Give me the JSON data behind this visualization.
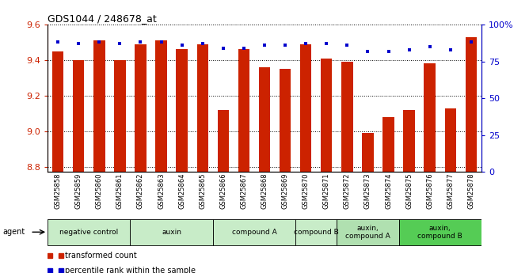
{
  "title": "GDS1044 / 248678_at",
  "samples": [
    "GSM25858",
    "GSM25859",
    "GSM25860",
    "GSM25861",
    "GSM25862",
    "GSM25863",
    "GSM25864",
    "GSM25865",
    "GSM25866",
    "GSM25867",
    "GSM25868",
    "GSM25869",
    "GSM25870",
    "GSM25871",
    "GSM25872",
    "GSM25873",
    "GSM25874",
    "GSM25875",
    "GSM25876",
    "GSM25877",
    "GSM25878"
  ],
  "bar_values": [
    9.45,
    9.4,
    9.51,
    9.4,
    9.49,
    9.51,
    9.46,
    9.49,
    9.12,
    9.46,
    9.36,
    9.35,
    9.49,
    9.41,
    9.39,
    8.99,
    9.08,
    9.12,
    9.38,
    9.13,
    9.53
  ],
  "dot_values": [
    88,
    87,
    88,
    87,
    88,
    88,
    86,
    87,
    84,
    84,
    86,
    86,
    87,
    87,
    86,
    82,
    82,
    83,
    85,
    83,
    88
  ],
  "ylim_left": [
    8.77,
    9.6
  ],
  "ylim_right": [
    0,
    100
  ],
  "yticks_left": [
    8.8,
    9.0,
    9.2,
    9.4,
    9.6
  ],
  "yticks_right": [
    0,
    25,
    50,
    75,
    100
  ],
  "bar_color": "#cc2200",
  "dot_color": "#0000cc",
  "agent_groups": [
    {
      "label": "negative control",
      "start": 0,
      "end": 3,
      "color": "#c8ecc8"
    },
    {
      "label": "auxin",
      "start": 4,
      "end": 7,
      "color": "#c8ecc8"
    },
    {
      "label": "compound A",
      "start": 8,
      "end": 11,
      "color": "#c8ecc8"
    },
    {
      "label": "compound B",
      "start": 12,
      "end": 13,
      "color": "#c8ecc8"
    },
    {
      "label": "auxin,\ncompound A",
      "start": 14,
      "end": 16,
      "color": "#b0e0b0"
    },
    {
      "label": "auxin,\ncompound B",
      "start": 17,
      "end": 20,
      "color": "#55cc55"
    }
  ],
  "legend_items": [
    {
      "color": "#cc2200",
      "marker": "s",
      "label": "transformed count"
    },
    {
      "color": "#0000cc",
      "marker": "s",
      "label": "percentile rank within the sample"
    }
  ]
}
